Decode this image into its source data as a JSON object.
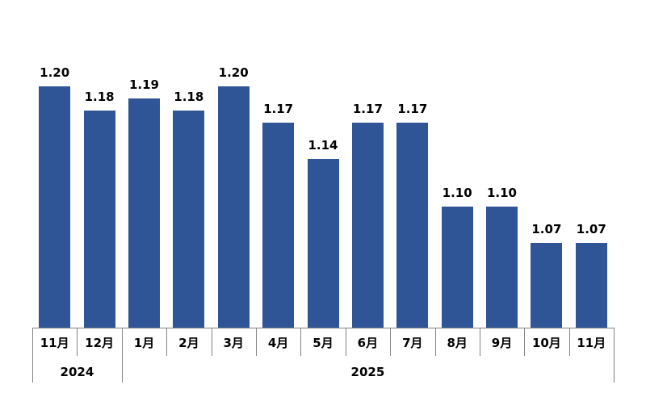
{
  "chart_data": {
    "type": "bar",
    "title": "",
    "xlabel": "",
    "ylabel": "",
    "categories": [
      "11月",
      "12月",
      "1月",
      "2月",
      "3月",
      "4月",
      "5月",
      "6月",
      "7月",
      "8月",
      "9月",
      "10月",
      "11月"
    ],
    "values": [
      1.2,
      1.18,
      1.19,
      1.18,
      1.2,
      1.17,
      1.14,
      1.17,
      1.17,
      1.1,
      1.1,
      1.07,
      1.07
    ],
    "data_labels": [
      "1.20",
      "1.18",
      "1.19",
      "1.18",
      "1.20",
      "1.17",
      "1.14",
      "1.17",
      "1.17",
      "1.10",
      "1.10",
      "1.07",
      "1.07"
    ],
    "year_groups": [
      {
        "label": "2024",
        "span": 2
      },
      {
        "label": "2025",
        "span": 11
      }
    ],
    "baseline_value": 1.0,
    "ylim": [
      1.0,
      1.22
    ],
    "grid": false,
    "legend": "none",
    "y_axis_visible": false,
    "data_labels_position": "above-bar",
    "colors": {
      "bar": "#2F5597",
      "axis": "#848484",
      "label": "#000000",
      "background": "#FFFFFF"
    }
  }
}
